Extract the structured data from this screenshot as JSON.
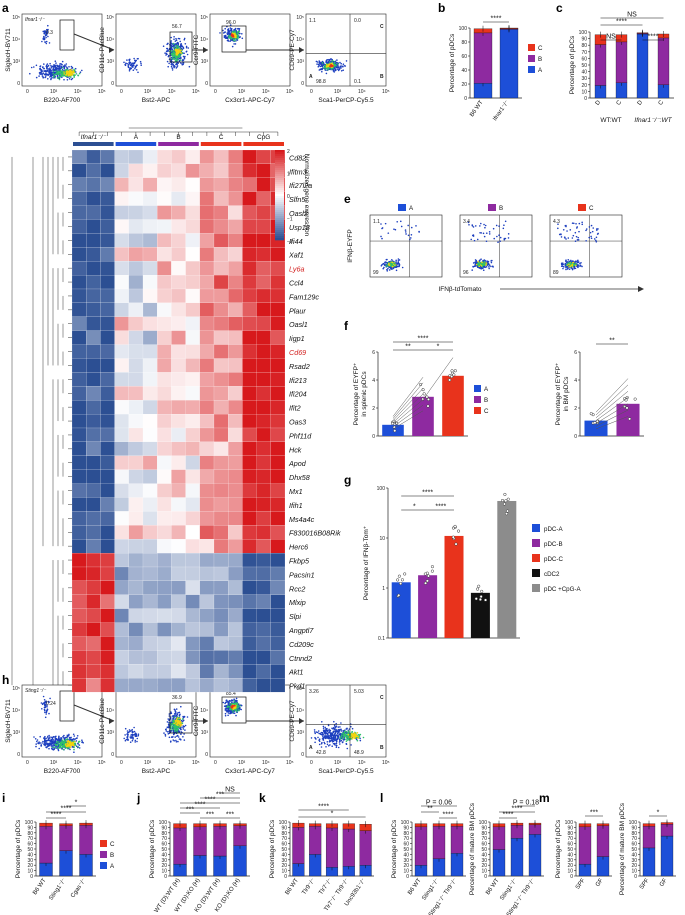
{
  "colors": {
    "A": "#1d4fd8",
    "B": "#8e2aa0",
    "C": "#e8331c",
    "cDC2": "#111111",
    "CpG": "#8c8c8c",
    "heat_hi": "#d7191c",
    "heat_lo": "#2c4f93"
  },
  "panel_labels": {
    "a": "a",
    "b": "b",
    "c": "c",
    "d": "d",
    "e": "e",
    "f": "f",
    "g": "g",
    "h": "h",
    "i": "i",
    "j": "j",
    "k": "k",
    "l": "l",
    "m": "m"
  },
  "panel_a": {
    "genotype": "Ifnar1⁻/⁻",
    "plots": [
      {
        "xlabel": "B220-AF700",
        "ylabel": "SiglecH-BV711",
        "gate_values": [
          "0.3"
        ]
      },
      {
        "xlabel": "Bst2-APC",
        "ylabel": "CD11c-PacBlue",
        "gate_values": [
          "56.7"
        ]
      },
      {
        "xlabel": "Cx3cr1-APC-Cy7",
        "ylabel": "Ccr9-FITC",
        "gate_values": [
          "96.0"
        ]
      },
      {
        "xlabel": "Sca1-PerCP-Cy5.5",
        "ylabel": "CD69-PE-Cy7",
        "gate_values": [
          "1.1",
          "0.0",
          "98.8",
          "0.1"
        ],
        "quadrant_letters": [
          "A",
          "B",
          "C"
        ]
      }
    ]
  },
  "panel_b": {
    "ylabel": "Percentage of pDCs",
    "yticks": [
      "0",
      "20",
      "40",
      "60",
      "80",
      "100"
    ],
    "sig": "****",
    "legend": [
      "C",
      "B",
      "A"
    ],
    "chart_data": {
      "type": "bar",
      "stacked": true,
      "categories": [
        "B6 WT",
        "Ifnar1⁻/⁻"
      ],
      "series": [
        {
          "name": "A",
          "values": [
            21,
            98
          ]
        },
        {
          "name": "B",
          "values": [
            72,
            1
          ]
        },
        {
          "name": "C",
          "values": [
            6,
            1
          ]
        }
      ],
      "ylim": [
        0,
        100
      ]
    }
  },
  "panel_c": {
    "ylabel": "Percentage of pDCs",
    "yticks": [
      "0",
      "10",
      "20",
      "30",
      "40",
      "50",
      "60",
      "70",
      "80",
      "90",
      "100"
    ],
    "sigs": [
      "NS",
      "****",
      "NS",
      "****"
    ],
    "groups": [
      "WT:WT",
      "Ifnar1⁻/⁻:WT"
    ],
    "chart_data": {
      "type": "bar",
      "stacked": true,
      "categories": [
        "D",
        "C",
        "D",
        "C"
      ],
      "series": [
        {
          "name": "A",
          "values": [
            19,
            23,
            97,
            20
          ]
        },
        {
          "name": "B",
          "values": [
            62,
            62,
            1,
            71
          ]
        },
        {
          "name": "C",
          "values": [
            15,
            11,
            1,
            6
          ]
        }
      ],
      "ylim": [
        0,
        100
      ]
    }
  },
  "panel_d": {
    "column_groups": [
      "Ifnar1⁻/⁻",
      "A",
      "B",
      "C",
      "CpG"
    ],
    "colorbar_label": "Normalized gene expression",
    "colorbar_ticks": [
      "2",
      "1",
      "0",
      "−1",
      "−2"
    ],
    "genes": [
      "Cd82",
      "Ifitm3",
      "Ifi27l2a",
      "Slfn5",
      "Oasl2",
      "Usp18",
      "Ifi44",
      "Xaf1",
      "Ly6a",
      "Ccl4",
      "Fam129c",
      "Plaur",
      "Oasl1",
      "Iigp1",
      "Cd69",
      "Rsad2",
      "Ifi213",
      "Ifi204",
      "Ifit2",
      "Oas3",
      "Phf11d",
      "Hck",
      "Apod",
      "Dhx58",
      "Mx1",
      "Ifih1",
      "Ms4a4c",
      "F830016B08Rik",
      "Herc6",
      "Fkbp5",
      "Pacsin1",
      "Rcc2",
      "Mlxip",
      "Slpi",
      "Angptl7",
      "Cd209c",
      "Ctnnd2",
      "Akt1",
      "Pkd1"
    ],
    "highlighted_genes": [
      "Ly6a",
      "Cd69"
    ]
  },
  "panel_e": {
    "ylabel": "IFNβ-EYFP",
    "xlabel": "IFNβ-tdTomato",
    "plots": [
      {
        "label": "A",
        "top_left": "1.1",
        "bottom_left": "99"
      },
      {
        "label": "B",
        "top_left": "3.4",
        "bottom_left": "96"
      },
      {
        "label": "C",
        "top_left": "4.3",
        "bottom_left": "89"
      }
    ]
  },
  "panel_f": {
    "left": {
      "ylabel": "Percentage of EYFP⁺ in splenic pDCs",
      "yticks": [
        "0",
        "2",
        "4",
        "6"
      ],
      "sigs": [
        "****",
        "**",
        "*"
      ],
      "legend": [
        "A",
        "B",
        "C"
      ],
      "chart_data": {
        "type": "bar",
        "categories": [
          "A",
          "B",
          "C"
        ],
        "values": [
          0.8,
          2.8,
          4.3
        ],
        "ylim": [
          0,
          6
        ]
      }
    },
    "right": {
      "ylabel": "Percentage of EYFP⁺ in BM pDCs",
      "yticks": [
        "0",
        "2",
        "4",
        "6"
      ],
      "sig": "**",
      "chart_data": {
        "type": "bar",
        "categories": [
          "A",
          "B"
        ],
        "values": [
          1.1,
          2.3
        ],
        "ylim": [
          0,
          6
        ]
      }
    }
  },
  "panel_g": {
    "ylabel": "Percentage of IFNβ-Tom⁺",
    "yticks": [
      "0.1",
      "1",
      "10",
      "100"
    ],
    "sigs": [
      "****",
      "*",
      "****"
    ],
    "legend": [
      "pDC-A",
      "pDC-B",
      "pDC-C",
      "cDC2",
      "pDC +CpG-A"
    ],
    "chart_data": {
      "type": "bar",
      "log_scale": true,
      "categories": [
        "pDC-A",
        "pDC-B",
        "pDC-C",
        "cDC2",
        "pDC +CpG-A"
      ],
      "values": [
        1.3,
        1.8,
        11,
        0.8,
        55
      ],
      "ylim": [
        0.1,
        100
      ]
    }
  },
  "panel_h": {
    "genotype": "Sting1⁻/⁻",
    "plots": [
      {
        "xlabel": "B220-AF700",
        "ylabel": "SiglecH-BV711",
        "gate_values": [
          "0.24"
        ]
      },
      {
        "xlabel": "Bst2-APC",
        "ylabel": "CD11c-PacBlue",
        "gate_values": [
          "36.9"
        ]
      },
      {
        "xlabel": "Cx3cr1-APC-Cy7",
        "ylabel": "Ccr9-FITC",
        "gate_values": [
          "85.4"
        ]
      },
      {
        "xlabel": "Sca1-PerCP-Cy5.5",
        "ylabel": "CD69-PE-Cy7",
        "gate_values": [
          "3.26",
          "5.03",
          "42.8",
          "48.9"
        ],
        "quadrant_letters": [
          "A",
          "B",
          "C"
        ]
      }
    ]
  },
  "panel_i": {
    "ylabel": "Percentage of pDCs",
    "sigs": [
      "****",
      "*",
      "****"
    ],
    "legend": [
      "C",
      "B",
      "A"
    ],
    "chart_data": {
      "type": "bar",
      "stacked": true,
      "categories": [
        "B6 WT",
        "Sting1⁻/⁻",
        "Cgas⁻/⁻"
      ],
      "series": [
        {
          "name": "A",
          "values": [
            24,
            47,
            40
          ]
        },
        {
          "name": "B",
          "values": [
            68,
            46,
            54
          ]
        },
        {
          "name": "C",
          "values": [
            6,
            4,
            4
          ]
        }
      ],
      "ylim": [
        0,
        100
      ]
    }
  },
  "panel_j": {
    "ylabel": "Percentage of pDCs",
    "sigs": [
      "NS",
      "***",
      "****",
      "****",
      "***",
      "***",
      "***"
    ],
    "chart_data": {
      "type": "bar",
      "stacked": true,
      "categories": [
        "WT (D):WT (H)",
        "WT (D):KO (H)",
        "KO (D):WT (H)",
        "KO (D):KO (H)"
      ],
      "series": [
        {
          "name": "A",
          "values": [
            22,
            38,
            37,
            56
          ]
        },
        {
          "name": "B",
          "values": [
            67,
            53,
            55,
            37
          ]
        },
        {
          "name": "C",
          "values": [
            8,
            6,
            5,
            4
          ]
        }
      ],
      "ylim": [
        0,
        100
      ]
    }
  },
  "panel_k": {
    "ylabel": "Percentage of pDCs",
    "sigs": [
      "****",
      "*"
    ],
    "chart_data": {
      "type": "bar",
      "stacked": true,
      "categories": [
        "B6 WT",
        "Tlr9⁻/⁻",
        "Tlr7⁻/⁻",
        "Tlr7⁻/⁻ Tlr9⁻/⁻",
        "Unc93b1⁻/⁻"
      ],
      "series": [
        {
          "name": "A",
          "values": [
            23,
            40,
            16,
            18,
            20
          ]
        },
        {
          "name": "B",
          "values": [
            67,
            52,
            73,
            69,
            64
          ]
        },
        {
          "name": "C",
          "values": [
            8,
            5,
            8,
            10,
            12
          ]
        }
      ],
      "ylim": [
        0,
        100
      ]
    }
  },
  "panel_l": {
    "left": {
      "ylabel": "Percentage of pDCs",
      "sigs": [
        "P = 0.06",
        "**",
        "****"
      ],
      "chart_data": {
        "type": "bar",
        "stacked": true,
        "categories": [
          "B6 WT",
          "Sting1⁻/⁻",
          "Sting1⁻/⁻ Tlr9⁻/⁻"
        ],
        "series": [
          {
            "name": "A",
            "values": [
              20,
              32,
              42
            ]
          },
          {
            "name": "B",
            "values": [
              71,
              60,
              50
            ]
          },
          {
            "name": "C",
            "values": [
              6,
              5,
              5
            ]
          }
        ],
        "ylim": [
          0,
          100
        ]
      }
    },
    "right": {
      "ylabel": "Percentage of mature BM pDCs",
      "sigs": [
        "P = 0.18",
        "****",
        "****"
      ],
      "chart_data": {
        "type": "bar",
        "stacked": true,
        "categories": [
          "B6 WT",
          "Sting1⁻/⁻",
          "Sting1⁻/⁻ Tlr9⁻/⁻"
        ],
        "series": [
          {
            "name": "A",
            "values": [
              49,
              70,
              77
            ]
          },
          {
            "name": "B",
            "values": [
              42,
              24,
              18
            ]
          },
          {
            "name": "C",
            "values": [
              6,
              4,
              3
            ]
          }
        ],
        "ylim": [
          0,
          100
        ]
      }
    }
  },
  "panel_m": {
    "left": {
      "ylabel": "Percentage of pDCs",
      "sig": "***",
      "chart_data": {
        "type": "bar",
        "stacked": true,
        "categories": [
          "SPF",
          "GF"
        ],
        "series": [
          {
            "name": "A",
            "values": [
              22,
              36
            ]
          },
          {
            "name": "B",
            "values": [
              69,
              57
            ]
          },
          {
            "name": "C",
            "values": [
              6,
              4
            ]
          }
        ],
        "ylim": [
          0,
          100
        ]
      }
    },
    "right": {
      "ylabel": "Percentage of mature BM pDCs",
      "sig": "*",
      "chart_data": {
        "type": "bar",
        "stacked": true,
        "categories": [
          "SPF",
          "GF"
        ],
        "series": [
          {
            "name": "A",
            "values": [
              52,
              74
            ]
          },
          {
            "name": "B",
            "values": [
              40,
              22
            ]
          },
          {
            "name": "C",
            "values": [
              5,
              3
            ]
          }
        ],
        "ylim": [
          0,
          100
        ]
      }
    }
  }
}
